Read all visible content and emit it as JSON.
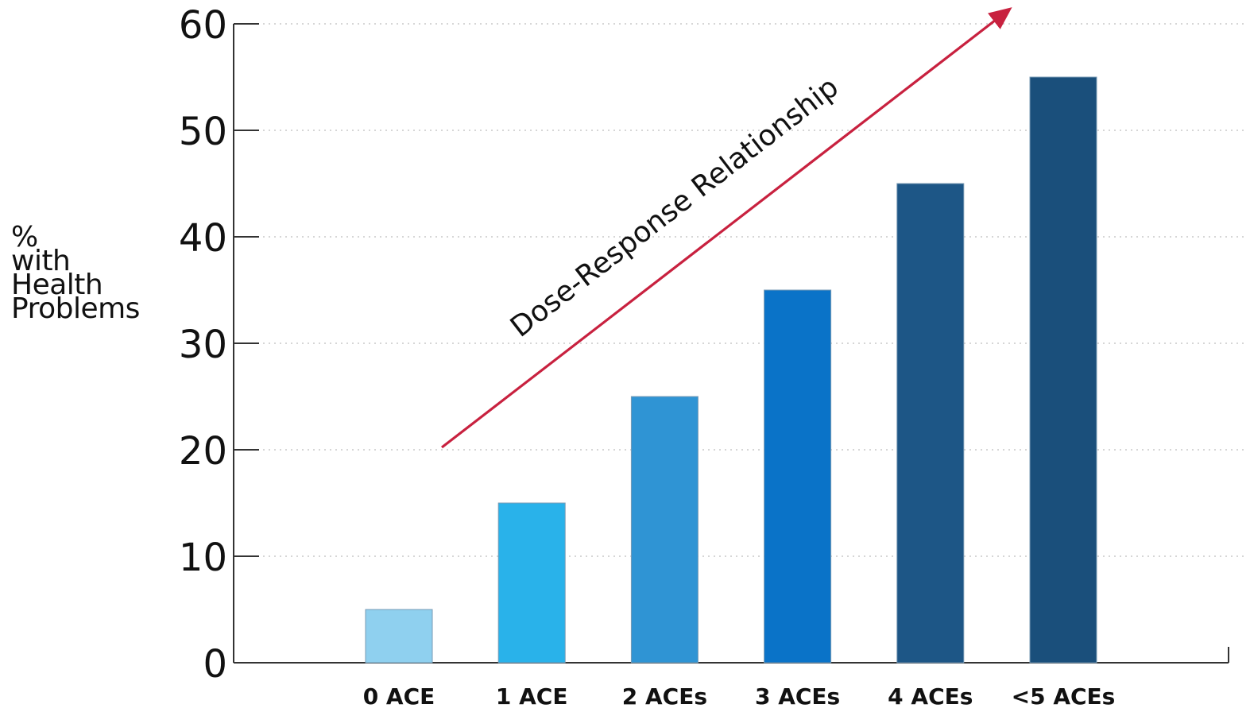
{
  "chart_data": {
    "type": "bar",
    "categories": [
      "0 ACE",
      "1 ACE",
      "2 ACEs",
      "3 ACEs",
      "4 ACEs",
      "<5 ACEs"
    ],
    "values": [
      5,
      15,
      25,
      35,
      45,
      55
    ],
    "ylabel_lines": [
      "%",
      "with",
      "Health",
      "Problems"
    ],
    "xlabel": "",
    "title": "",
    "ylim": [
      0,
      60
    ],
    "yticks": [
      0,
      10,
      20,
      30,
      40,
      50,
      60
    ],
    "grid": true,
    "annotation": {
      "text": "Dose-Response Relationship",
      "color": "#c8213f"
    },
    "bar_colors": [
      "#8fd0ef",
      "#29b2ea",
      "#2f94d4",
      "#0a73c8",
      "#1d5686",
      "#1a4f7b"
    ]
  }
}
